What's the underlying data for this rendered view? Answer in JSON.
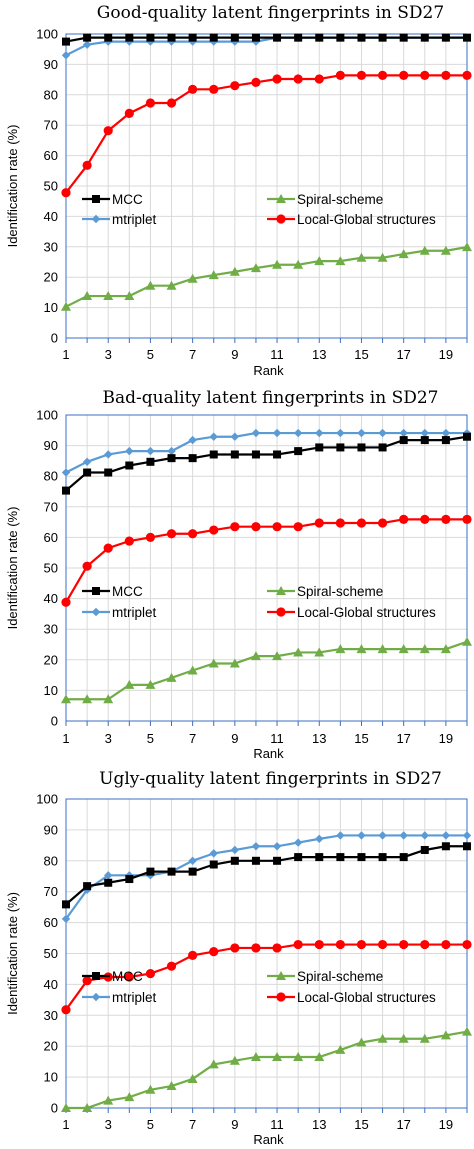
{
  "chart_data": [
    {
      "type": "line",
      "title": "Good-quality latent fingerprints in SD27",
      "xlabel": "Rank",
      "ylabel": "Identification rate (%)",
      "ylim": [
        0,
        100
      ],
      "xlim": [
        1,
        20
      ],
      "yticks": [
        "0",
        "10",
        "20",
        "30",
        "40",
        "50",
        "60",
        "70",
        "80",
        "90",
        "100"
      ],
      "xticks": [
        "1",
        "3",
        "5",
        "7",
        "9",
        "11",
        "13",
        "15",
        "17",
        "19"
      ],
      "x": [
        1,
        2,
        3,
        4,
        5,
        6,
        7,
        8,
        9,
        10,
        11,
        12,
        13,
        14,
        15,
        16,
        17,
        18,
        19,
        20
      ],
      "grid": true,
      "series": [
        {
          "name": "MCC",
          "marker": "square",
          "color": "#000000",
          "values": [
            97.5,
            98.8,
            98.8,
            98.8,
            98.8,
            98.8,
            98.8,
            98.8,
            98.8,
            98.8,
            98.8,
            98.8,
            98.8,
            98.8,
            98.8,
            98.8,
            98.8,
            98.8,
            98.8,
            98.8
          ]
        },
        {
          "name": "mtriplet",
          "marker": "diamond",
          "color": "#5b9bd5",
          "values": [
            93.0,
            96.5,
            97.5,
            97.5,
            97.5,
            97.5,
            97.5,
            97.5,
            97.5,
            97.5,
            98.8,
            98.8,
            98.8,
            98.8,
            98.8,
            98.8,
            98.8,
            98.8,
            98.8,
            98.8
          ]
        },
        {
          "name": "Spiral-scheme",
          "marker": "triangle",
          "color": "#70ad47",
          "values": [
            10.3,
            13.8,
            13.8,
            13.8,
            17.2,
            17.2,
            19.5,
            20.7,
            21.8,
            23.0,
            24.1,
            24.1,
            25.3,
            25.3,
            26.4,
            26.4,
            27.6,
            28.7,
            28.7,
            29.9
          ]
        },
        {
          "name": "Local-Global structures",
          "marker": "circle",
          "color": "#ff0000",
          "values": [
            47.8,
            56.8,
            68.2,
            73.9,
            77.3,
            77.3,
            81.8,
            81.8,
            83.0,
            84.1,
            85.2,
            85.2,
            85.2,
            86.4,
            86.4,
            86.4,
            86.4,
            86.4,
            86.4,
            86.4
          ]
        }
      ]
    },
    {
      "type": "line",
      "title": "Bad-quality latent fingerprints in SD27",
      "xlabel": "Rank",
      "ylabel": "Identification rate (%)",
      "ylim": [
        0,
        100
      ],
      "xlim": [
        1,
        20
      ],
      "yticks": [
        "0",
        "10",
        "20",
        "30",
        "40",
        "50",
        "60",
        "70",
        "80",
        "90",
        "100"
      ],
      "xticks": [
        "1",
        "3",
        "5",
        "7",
        "9",
        "11",
        "13",
        "15",
        "17",
        "19"
      ],
      "x": [
        1,
        2,
        3,
        4,
        5,
        6,
        7,
        8,
        9,
        10,
        11,
        12,
        13,
        14,
        15,
        16,
        17,
        18,
        19,
        20
      ],
      "grid": true,
      "series": [
        {
          "name": "MCC",
          "marker": "square",
          "color": "#000000",
          "values": [
            75.3,
            81.2,
            81.2,
            83.5,
            84.7,
            85.9,
            85.9,
            87.1,
            87.1,
            87.1,
            87.1,
            88.2,
            89.4,
            89.4,
            89.4,
            89.4,
            91.8,
            91.8,
            91.8,
            92.9
          ]
        },
        {
          "name": "mtriplet",
          "marker": "diamond",
          "color": "#5b9bd5",
          "values": [
            81.2,
            84.7,
            87.1,
            88.2,
            88.2,
            88.2,
            91.8,
            92.9,
            92.9,
            94.1,
            94.1,
            94.1,
            94.1,
            94.1,
            94.1,
            94.1,
            94.1,
            94.1,
            94.1,
            94.1
          ]
        },
        {
          "name": "Spiral-scheme",
          "marker": "triangle",
          "color": "#70ad47",
          "values": [
            7.1,
            7.1,
            7.1,
            11.8,
            11.8,
            14.1,
            16.5,
            18.8,
            18.8,
            21.2,
            21.2,
            22.4,
            22.4,
            23.5,
            23.5,
            23.5,
            23.5,
            23.5,
            23.5,
            25.9
          ]
        },
        {
          "name": "Local-Global structures",
          "marker": "circle",
          "color": "#ff0000",
          "values": [
            38.8,
            50.6,
            56.5,
            58.8,
            60.0,
            61.2,
            61.2,
            62.4,
            63.5,
            63.5,
            63.5,
            63.5,
            64.7,
            64.7,
            64.7,
            64.7,
            65.9,
            65.9,
            65.9,
            65.9
          ]
        }
      ]
    },
    {
      "type": "line",
      "title": "Ugly-quality latent fingerprints in SD27",
      "xlabel": "Rank",
      "ylabel": "Identification rate (%)",
      "ylim": [
        0,
        100
      ],
      "xlim": [
        1,
        20
      ],
      "yticks": [
        "0",
        "10",
        "20",
        "30",
        "40",
        "50",
        "60",
        "70",
        "80",
        "90",
        "100"
      ],
      "xticks": [
        "1",
        "3",
        "5",
        "7",
        "9",
        "11",
        "13",
        "15",
        "17",
        "19"
      ],
      "x": [
        1,
        2,
        3,
        4,
        5,
        6,
        7,
        8,
        9,
        10,
        11,
        12,
        13,
        14,
        15,
        16,
        17,
        18,
        19,
        20
      ],
      "grid": true,
      "series": [
        {
          "name": "MCC",
          "marker": "square",
          "color": "#000000",
          "values": [
            65.9,
            71.8,
            72.9,
            74.1,
            76.5,
            76.5,
            76.5,
            78.8,
            80.0,
            80.0,
            80.0,
            81.2,
            81.2,
            81.2,
            81.2,
            81.2,
            81.2,
            83.5,
            84.7,
            84.7
          ]
        },
        {
          "name": "mtriplet",
          "marker": "diamond",
          "color": "#5b9bd5",
          "values": [
            61.2,
            70.6,
            75.3,
            75.3,
            75.3,
            76.5,
            80.0,
            82.4,
            83.5,
            84.7,
            84.7,
            85.9,
            87.1,
            88.2,
            88.2,
            88.2,
            88.2,
            88.2,
            88.2,
            88.2
          ]
        },
        {
          "name": "Spiral-scheme",
          "marker": "triangle",
          "color": "#70ad47",
          "values": [
            0.0,
            0.0,
            2.4,
            3.5,
            5.9,
            7.1,
            9.4,
            14.1,
            15.3,
            16.5,
            16.5,
            16.5,
            16.5,
            18.8,
            21.2,
            22.4,
            22.4,
            22.4,
            23.5,
            24.7
          ]
        },
        {
          "name": "Local-Global structures",
          "marker": "circle",
          "color": "#ff0000",
          "values": [
            31.8,
            41.2,
            42.4,
            42.4,
            43.5,
            45.9,
            49.4,
            50.6,
            51.8,
            51.8,
            51.8,
            52.9,
            52.9,
            52.9,
            52.9,
            52.9,
            52.9,
            52.9,
            52.9,
            52.9
          ]
        }
      ]
    }
  ]
}
